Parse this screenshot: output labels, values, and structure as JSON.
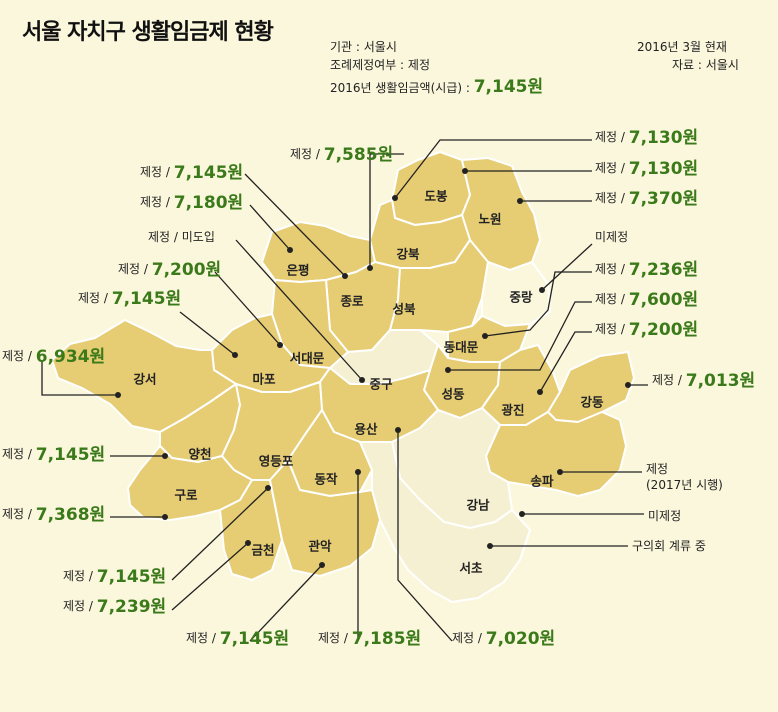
{
  "title": "서울 자치구 생활임금제 현황",
  "info": {
    "agency": "기관 :  서울시",
    "ordinance": "조례제정여부 :  제정",
    "wage_label": "2016년 생활임금액(시급) : ",
    "wage_value": "7,145원",
    "date": "2016년 3월 현재",
    "source": "자료 :  서울시"
  },
  "colors": {
    "district_fill": "#e6cc73",
    "district_stroke": "#ffffff",
    "han_river": "#f2edd0",
    "unfilled": "#f6f0d2",
    "value_green": "#3b7a1a"
  },
  "districts": {
    "dobong": "도봉",
    "nowon": "노원",
    "gangbuk": "강북",
    "eunpyeong": "은평",
    "jongno": "종로",
    "seongbuk": "성북",
    "jungnang": "중랑",
    "dongdaemun": "동대문",
    "seodaemun": "서대문",
    "mapo": "마포",
    "gangseo": "강서",
    "junggu": "중구",
    "seongdong": "성동",
    "gwangjin": "광진",
    "gangdong": "강동",
    "yongsan": "용산",
    "yangcheon": "양천",
    "yeongdeungpo": "영등포",
    "dongjak": "동작",
    "guro": "구로",
    "songpa": "송파",
    "gangnam": "강남",
    "geumcheon": "금천",
    "gwanak": "관악",
    "seocho": "서초"
  },
  "labels": {
    "jongno": {
      "pre": "제정 / ",
      "val": "7,585원"
    },
    "dobong": {
      "pre": "제정 / ",
      "val": "7,130원"
    },
    "gangbuk": {
      "pre": "제정 / ",
      "val": "7,130원"
    },
    "nowon": {
      "pre": "제정 / ",
      "val": "7,370원"
    },
    "jungnang": {
      "pre": "미제정"
    },
    "dongdaemun": {
      "pre": "제정 / ",
      "val": "7,236원"
    },
    "seongdong": {
      "pre": "제정 / ",
      "val": "7,600원"
    },
    "gwangjin": {
      "pre": "제정 / ",
      "val": "7,200원"
    },
    "gangdong": {
      "pre": "제정 / ",
      "val": "7,013원"
    },
    "songpa": {
      "pre": "제정",
      "note": "(2017년 시행)"
    },
    "gangnam": {
      "pre": "미제정"
    },
    "seocho": {
      "pre": "구의회 계류 중"
    },
    "yongsan": {
      "pre": "제정 / ",
      "val": "7,020원"
    },
    "dongjak": {
      "pre": "제정 / ",
      "val": "7,185원"
    },
    "gwanak": {
      "pre": "제정 / ",
      "val": "7,145원"
    },
    "geumcheon": {
      "pre": "제정 / ",
      "val": "7,239원"
    },
    "yeongdeungpo": {
      "pre": "제정 / ",
      "val": "7,145원"
    },
    "guro": {
      "pre": "제정 / ",
      "val": "7,368원"
    },
    "yangcheon": {
      "pre": "제정 / ",
      "val": "7,145원"
    },
    "gangseo": {
      "pre": "제정 / ",
      "val": "6,934원"
    },
    "mapo": {
      "pre": "제정 / ",
      "val": "7,145원"
    },
    "seodaemun": {
      "pre": "제정 / ",
      "val": "7,200원"
    },
    "junggu": {
      "pre": "제정 / 미도입"
    },
    "eunpyeong": {
      "pre": "제정 / ",
      "val": "7,180원"
    },
    "seongbuk": {
      "pre": "제정 / ",
      "val": "7,145원"
    }
  }
}
